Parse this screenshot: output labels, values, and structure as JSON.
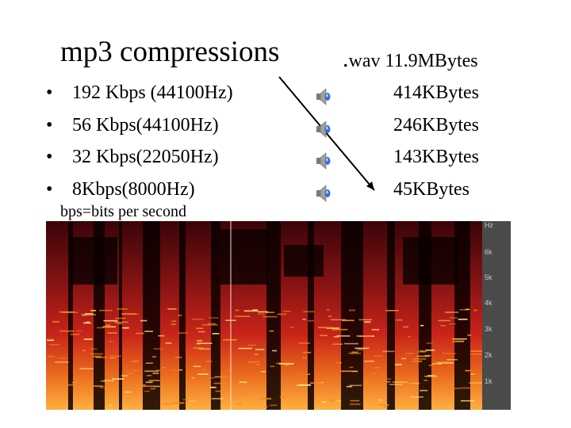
{
  "slide": {
    "title": "mp3 compressions",
    "wav_dot": ".",
    "wav_label": "wav 11.9MBytes",
    "bullet_glyph": "•",
    "items": [
      {
        "label": "192 Kbps (44100Hz)",
        "size": "414KBytes",
        "icon": "speaker-icon"
      },
      {
        "label": "56 Kbps(44100Hz)",
        "size": "246KBytes",
        "icon": "speaker-icon"
      },
      {
        "label": "32 Kbps(22050Hz)",
        "size": "143KBytes",
        "icon": "speaker-icon"
      },
      {
        "label": "8Kbps(8000Hz)",
        "size": "45KBytes",
        "icon": "speaker-icon"
      }
    ],
    "note": "bps=bits per second"
  },
  "spectrogram": {
    "axis_labels": [
      "Hz",
      "6k",
      "5k",
      "4k",
      "3k",
      "2k",
      "1k"
    ],
    "colors": {
      "background": "#0a0000",
      "low": "#6b0a12",
      "mid": "#c8241a",
      "high": "#f08a1e",
      "peak": "#ffe070",
      "axis_bg": "#4a4a4a"
    }
  }
}
